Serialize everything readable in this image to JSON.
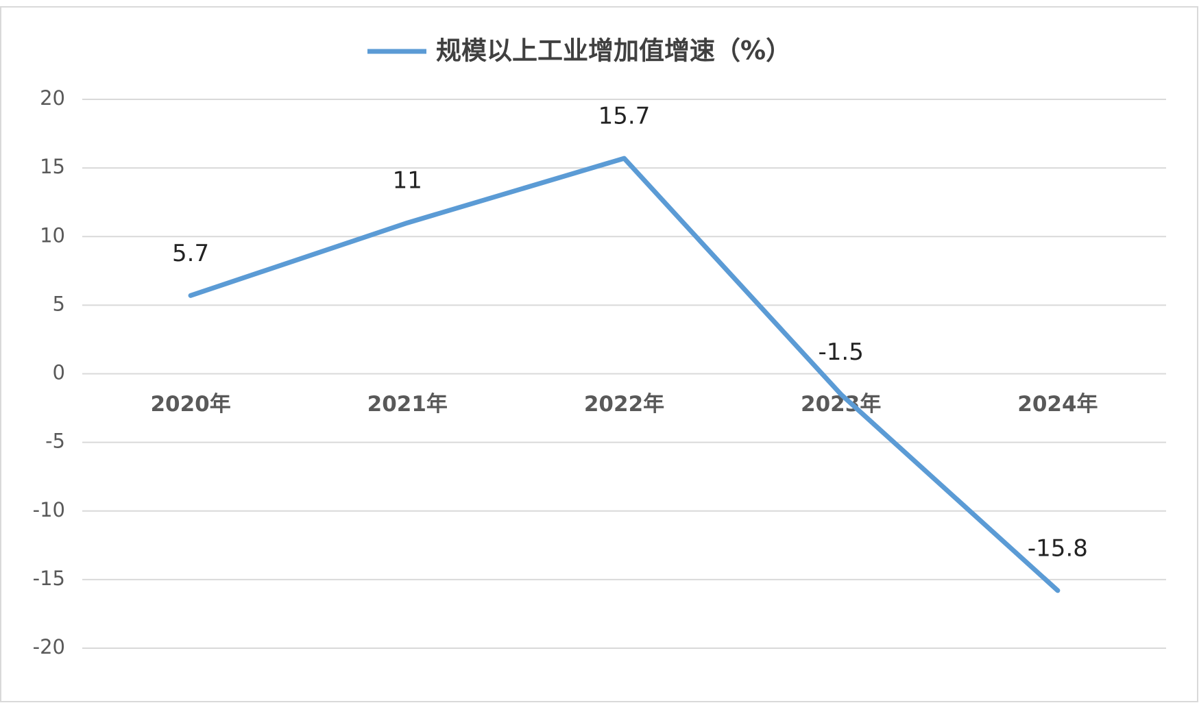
{
  "chart_data": {
    "type": "line",
    "categories": [
      "2020年",
      "2021年",
      "2022年",
      "2023年",
      "2024年"
    ],
    "series": [
      {
        "name": "规模以上工业增加值增速（%）",
        "color": "#5b9bd5",
        "values": [
          5.7,
          11,
          15.7,
          -1.5,
          -15.8
        ]
      }
    ],
    "ylim": [
      -20,
      20
    ],
    "yticks": [
      -20,
      -15,
      -10,
      -5,
      0,
      5,
      10,
      15,
      20
    ],
    "grid": true,
    "legend": "top",
    "data_labels": true
  }
}
